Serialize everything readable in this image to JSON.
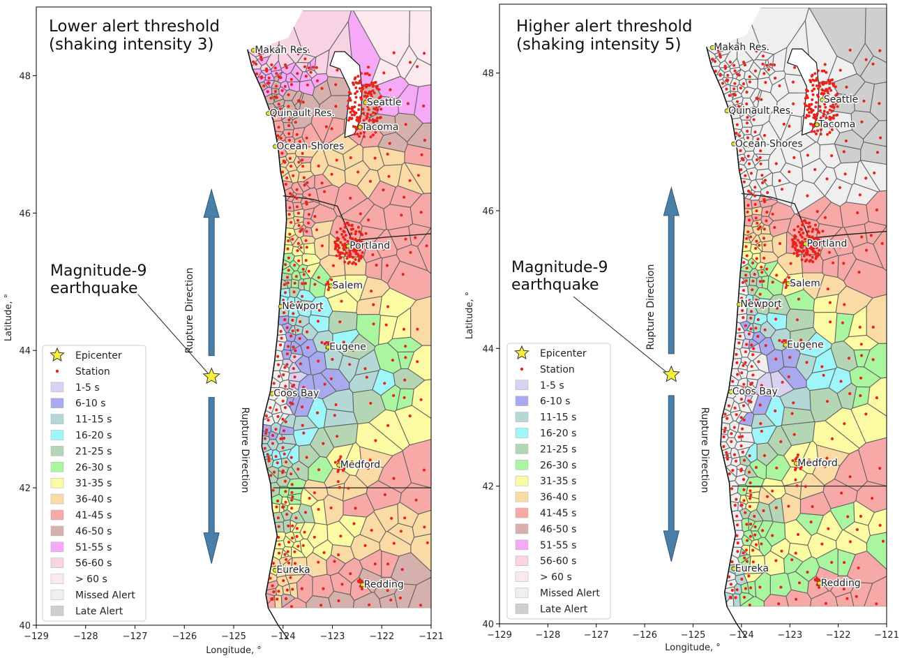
{
  "panels": [
    {
      "id": "left",
      "title_lines": [
        "Lower alert threshold",
        "(shaking intensity 3)"
      ],
      "scheme": "lower"
    },
    {
      "id": "right",
      "title_lines": [
        "Higher alert threshold",
        "(shaking intensity 5)"
      ],
      "scheme": "higher"
    }
  ],
  "axes": {
    "xlabel": "Longitude, °",
    "ylabel": "Latitude, °",
    "xlim": [
      -129,
      -121
    ],
    "ylim": [
      40,
      49
    ],
    "xticks": [
      -129,
      -128,
      -127,
      -126,
      -125,
      -124,
      -123,
      -122,
      -121
    ],
    "xtick_labels": [
      "−129",
      "−128",
      "−127",
      "−126",
      "−125",
      "−124",
      "−123",
      "−122",
      "−121"
    ],
    "yticks": [
      40,
      42,
      44,
      46,
      48
    ],
    "ytick_labels": [
      "40",
      "42",
      "44",
      "46",
      "48"
    ]
  },
  "cities": [
    {
      "name": "Makah Res.",
      "lon": -124.6,
      "lat": 48.37
    },
    {
      "name": "Quinault Res.",
      "lon": -124.3,
      "lat": 47.45
    },
    {
      "name": "Seattle",
      "lon": -122.33,
      "lat": 47.61
    },
    {
      "name": "Tacoma",
      "lon": -122.44,
      "lat": 47.25
    },
    {
      "name": "Ocean Shores",
      "lon": -124.16,
      "lat": 46.97
    },
    {
      "name": "Portland",
      "lon": -122.68,
      "lat": 45.52
    },
    {
      "name": "Salem",
      "lon": -123.03,
      "lat": 44.94
    },
    {
      "name": "Newport",
      "lon": -124.05,
      "lat": 44.64
    },
    {
      "name": "Eugene",
      "lon": -123.09,
      "lat": 44.05
    },
    {
      "name": "Coos Bay",
      "lon": -124.22,
      "lat": 43.37
    },
    {
      "name": "Medford",
      "lon": -122.87,
      "lat": 42.33
    },
    {
      "name": "Eureka",
      "lon": -124.16,
      "lat": 40.8
    },
    {
      "name": "Redding",
      "lon": -122.39,
      "lat": 40.59
    }
  ],
  "epicenter": {
    "lon": -125.45,
    "lat": 43.62
  },
  "annotation": {
    "lines": [
      "Magnitude-9",
      "earthquake"
    ]
  },
  "rupture_label": "Rupture Direction",
  "legend": [
    {
      "label": "Epicenter",
      "kind": "star",
      "color": "#f7ef3a"
    },
    {
      "label": "Station",
      "kind": "dot",
      "color": "#e8231c"
    },
    {
      "label": "1-5 s",
      "kind": "patch",
      "color": "#d8d2f0"
    },
    {
      "label": "6-10 s",
      "kind": "patch",
      "color": "#a9a9f0"
    },
    {
      "label": "11-15 s",
      "kind": "patch",
      "color": "#b3d8d6"
    },
    {
      "label": "16-20 s",
      "kind": "patch",
      "color": "#9ff6fa"
    },
    {
      "label": "21-25 s",
      "kind": "patch",
      "color": "#b5d6b4"
    },
    {
      "label": "26-30 s",
      "kind": "patch",
      "color": "#a9f5a0"
    },
    {
      "label": "31-35 s",
      "kind": "patch",
      "color": "#fbfba4"
    },
    {
      "label": "36-40 s",
      "kind": "patch",
      "color": "#fbdba5"
    },
    {
      "label": "41-45 s",
      "kind": "patch",
      "color": "#f6a9a6"
    },
    {
      "label": "46-50 s",
      "kind": "patch",
      "color": "#d6b0ac"
    },
    {
      "label": "51-55 s",
      "kind": "patch",
      "color": "#f6a9f6"
    },
    {
      "label": "56-60 s",
      "kind": "patch",
      "color": "#f8d3e4"
    },
    {
      "label": "> 60 s",
      "kind": "patch",
      "color": "#fbe9ef"
    },
    {
      "label": "Missed Alert",
      "kind": "patch",
      "color": "#efefef"
    },
    {
      "label": "Late Alert",
      "kind": "patch",
      "color": "#cfcfcf"
    }
  ],
  "colors": {
    "station": "#e8231c",
    "arrow": "#4a7fa8",
    "arrow_edge": "#2f5677",
    "cell_edge": "#555555"
  }
}
